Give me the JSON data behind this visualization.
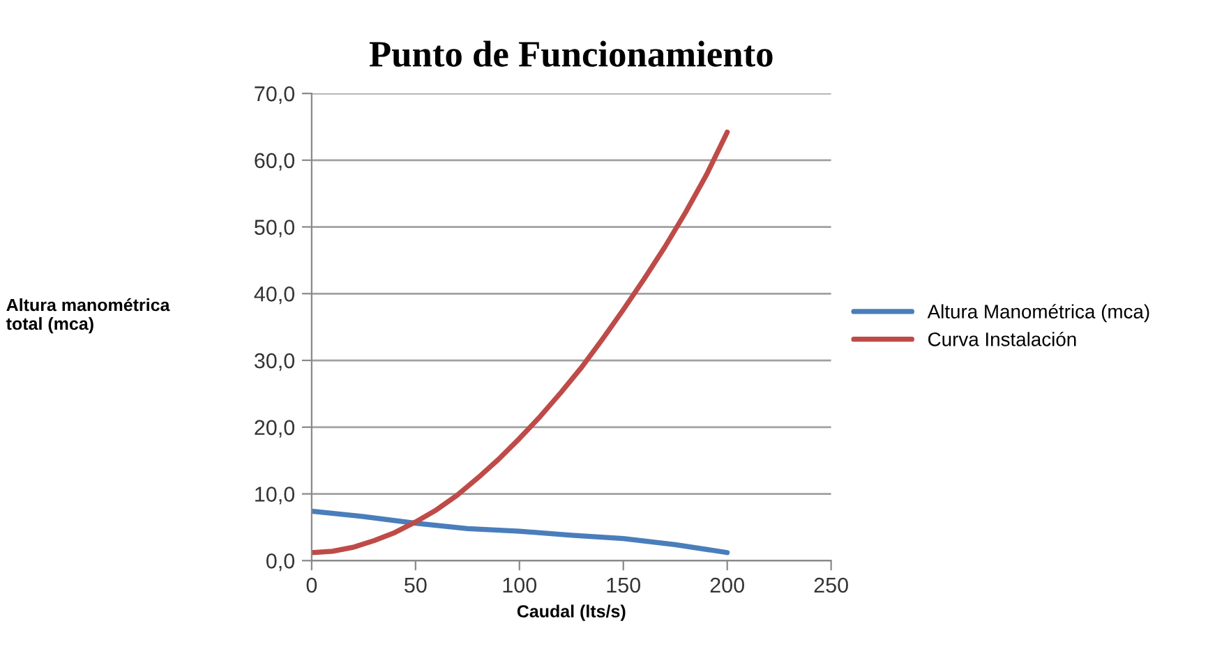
{
  "chart_data": {
    "type": "line",
    "title": "Punto de Funcionamiento",
    "xlabel": "Caudal (lts/s)",
    "ylabel": "Altura manométrica\ntotal (mca)",
    "series": [
      {
        "name": "Altura Manométrica (mca)",
        "color": "#4a7ebb",
        "x": [
          0,
          25,
          50,
          75,
          100,
          125,
          150,
          175,
          200
        ],
        "values": [
          7.4,
          6.6,
          5.6,
          4.8,
          4.4,
          3.8,
          3.3,
          2.4,
          1.2
        ]
      },
      {
        "name": "Curva Instalación",
        "color": "#be4b48",
        "x": [
          0,
          10,
          20,
          30,
          40,
          50,
          60,
          70,
          80,
          90,
          100,
          110,
          120,
          130,
          140,
          150,
          160,
          170,
          180,
          190,
          200
        ],
        "values": [
          1.2,
          1.4,
          2.0,
          3.0,
          4.2,
          5.8,
          7.6,
          9.8,
          12.4,
          15.2,
          18.3,
          21.6,
          25.2,
          29.0,
          33.2,
          37.6,
          42.2,
          47.0,
          52.2,
          57.8,
          64.2
        ]
      }
    ],
    "xlim": [
      0,
      250
    ],
    "xticks": [
      0,
      50,
      100,
      150,
      200,
      250
    ],
    "ylim": [
      0,
      70
    ],
    "yticks": [
      {
        "value": 0,
        "label": "0,0"
      },
      {
        "value": 10,
        "label": "10,0"
      },
      {
        "value": 20,
        "label": "20,0"
      },
      {
        "value": 30,
        "label": "30,0"
      },
      {
        "value": 40,
        "label": "40,0"
      },
      {
        "value": 50,
        "label": "50,0"
      },
      {
        "value": 60,
        "label": "60,0"
      },
      {
        "value": 70,
        "label": "70,0"
      }
    ],
    "grid": "y",
    "legend": "right",
    "marker": "none",
    "line_style": "solid"
  }
}
